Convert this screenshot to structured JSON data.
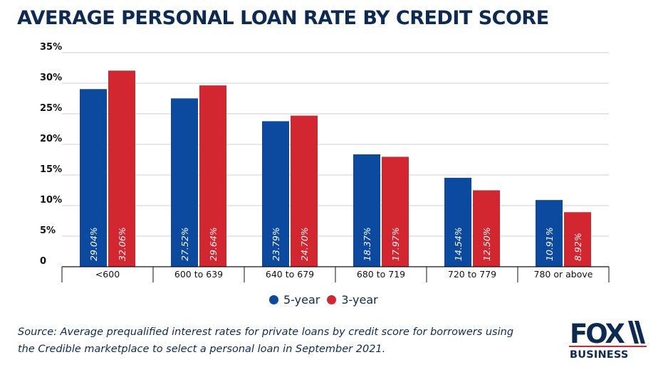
{
  "chart_data": {
    "type": "bar",
    "title": "AVERAGE PERSONAL LOAN RATE BY CREDIT SCORE",
    "categories": [
      "<600",
      "600 to 639",
      "640 to 679",
      "680 to 719",
      "720 to 779",
      "780 or above"
    ],
    "series": [
      {
        "name": "5-year",
        "color": "#0b4a9f",
        "values": [
          29.04,
          27.52,
          23.79,
          18.37,
          14.54,
          10.91
        ],
        "labels": [
          "29.04%",
          "27.52%",
          "23.79%",
          "18.37%",
          "14.54%",
          "10.91%"
        ]
      },
      {
        "name": "3-year",
        "color": "#d22630",
        "values": [
          32.06,
          29.64,
          24.7,
          17.97,
          12.5,
          8.92
        ],
        "labels": [
          "32.06%",
          "29.64%",
          "24.70%",
          "17.97%",
          "12.50%",
          "8.92%"
        ]
      }
    ],
    "ylim": [
      0,
      35
    ],
    "yticks": [
      {
        "value": 0,
        "label": "0"
      },
      {
        "value": 5,
        "label": "5%"
      },
      {
        "value": 10,
        "label": "10%"
      },
      {
        "value": 15,
        "label": "15%"
      },
      {
        "value": 20,
        "label": "20%"
      },
      {
        "value": 25,
        "label": "25%"
      },
      {
        "value": 30,
        "label": "30%"
      },
      {
        "value": 35,
        "label": "35%"
      }
    ],
    "xlabel": "",
    "ylabel": "",
    "grid": true,
    "legend_position": "bottom-center"
  },
  "source": "Source: Average prequalified interest rates for private loans by credit score for borrowers using the Credible marketplace to select a personal loan in September 2021.",
  "logo": {
    "top": "FOX",
    "bottom": "BUSINESS"
  },
  "colors": {
    "title": "#0d2b52",
    "grid": "#cfcfcf",
    "axis": "#111111"
  }
}
